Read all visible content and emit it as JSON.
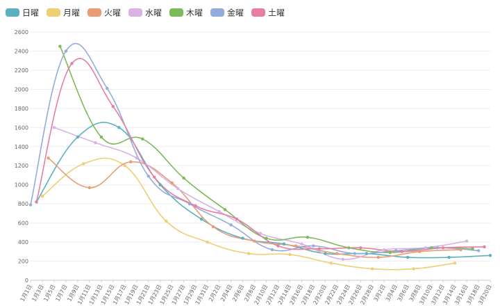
{
  "chart_data": {
    "type": "line",
    "smooth": true,
    "grid": true,
    "legend_position": "top-left",
    "ylim": [
      0,
      2600
    ],
    "y_ticks": [
      0,
      200,
      400,
      600,
      800,
      1000,
      1200,
      1400,
      1600,
      1800,
      2000,
      2200,
      2400,
      2600
    ],
    "x_tick_labels": [
      "1月1日",
      "1月3日",
      "1月5日",
      "1月7日",
      "1月9日",
      "1月11日",
      "1月13日",
      "1月15日",
      "1月17日",
      "1月19日",
      "1月21日",
      "1月23日",
      "1月25日",
      "1月27日",
      "1月29日",
      "1月31日",
      "2月2日",
      "2月4日",
      "2月6日",
      "2月8日",
      "2月10日",
      "2月12日",
      "2月14日",
      "2月16日",
      "2月18日",
      "2月20日",
      "2月22日",
      "2月24日",
      "2月26日",
      "2月28日",
      "3月2日",
      "3月4日",
      "3月6日",
      "3月8日",
      "3月10日",
      "3月12日",
      "3月14日",
      "3月16日",
      "3月18日",
      "3月20日"
    ],
    "series": [
      {
        "name": "日曜",
        "color": "#5ab1bf",
        "x": [
          1,
          8,
          15,
          22,
          29,
          36,
          43,
          50,
          57,
          64,
          71,
          78
        ],
        "y": [
          820,
          1500,
          1600,
          1000,
          640,
          440,
          380,
          280,
          280,
          240,
          240,
          260
        ]
      },
      {
        "name": "月曜",
        "color": "#efcf73",
        "x": [
          2,
          9,
          16,
          23,
          30,
          37,
          44,
          51,
          58,
          65,
          72
        ],
        "y": [
          880,
          1220,
          1200,
          620,
          400,
          280,
          270,
          180,
          120,
          120,
          180
        ]
      },
      {
        "name": "火曜",
        "color": "#e99d74",
        "x": [
          3,
          10,
          17,
          24,
          31,
          38,
          45,
          52,
          59,
          66,
          73
        ],
        "y": [
          1280,
          970,
          1240,
          1020,
          560,
          410,
          360,
          280,
          240,
          300,
          320
        ]
      },
      {
        "name": "水曜",
        "color": "#d9b2e6",
        "x": [
          4,
          11,
          18,
          25,
          32,
          39,
          46,
          53,
          60,
          67,
          74
        ],
        "y": [
          1600,
          1440,
          1280,
          960,
          720,
          490,
          380,
          220,
          320,
          340,
          410
        ]
      },
      {
        "name": "木曜",
        "color": "#7bbb5a",
        "x": [
          5,
          12,
          19,
          26,
          33,
          40,
          47,
          54,
          61,
          68,
          75
        ],
        "y": [
          2450,
          1500,
          1480,
          1070,
          740,
          440,
          450,
          340,
          290,
          340,
          330
        ]
      },
      {
        "name": "金曜",
        "color": "#94acd9",
        "x": [
          0,
          6,
          13,
          20,
          27,
          34,
          41,
          48,
          55,
          62,
          69,
          76
        ],
        "y": [
          790,
          2400,
          2010,
          1090,
          800,
          580,
          320,
          360,
          280,
          310,
          340,
          310
        ]
      },
      {
        "name": "土曜",
        "color": "#e57fa3",
        "x": [
          1,
          7,
          14,
          21,
          28,
          35,
          42,
          49,
          56,
          63,
          70,
          77
        ],
        "y": [
          820,
          2270,
          1820,
          1080,
          780,
          640,
          360,
          330,
          340,
          300,
          340,
          350
        ]
      }
    ]
  }
}
